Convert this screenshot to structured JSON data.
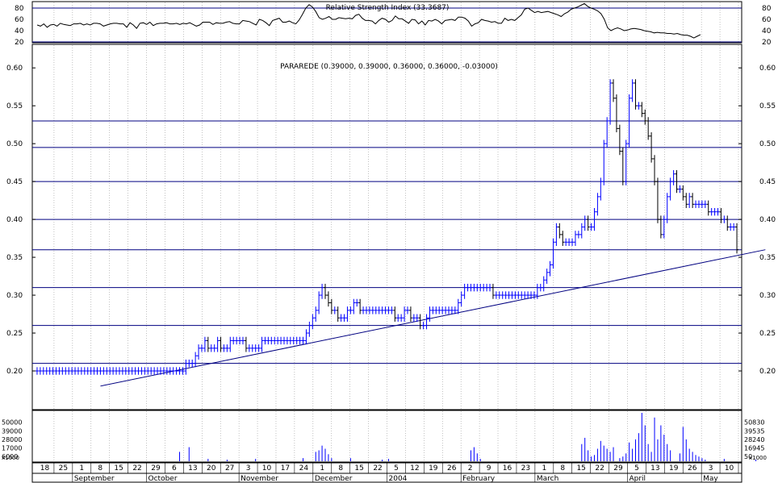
{
  "chart_data": [
    {
      "panel": "rsi",
      "type": "line",
      "title": "Relative Strength Index (33.3687)",
      "y_ticks": [
        80,
        60,
        40,
        20
      ],
      "ylim": [
        20,
        90
      ],
      "reference_lines": [
        80,
        20
      ],
      "values": [
        50,
        48,
        52,
        46,
        50,
        51,
        48,
        53,
        51,
        50,
        49,
        52,
        52,
        53,
        50,
        52,
        50,
        53,
        53,
        52,
        48,
        50,
        52,
        53,
        53,
        52,
        52,
        46,
        54,
        50,
        44,
        53,
        54,
        51,
        55,
        49,
        52,
        53,
        53,
        54,
        52,
        52,
        53,
        51,
        53,
        52,
        54,
        51,
        48,
        50,
        55,
        55,
        55,
        51,
        54,
        53,
        53,
        55,
        56,
        53,
        52,
        52,
        58,
        57,
        56,
        53,
        50,
        60,
        58,
        54,
        49,
        58,
        60,
        62,
        55,
        55,
        57,
        54,
        52,
        59,
        69,
        80,
        86,
        82,
        74,
        63,
        60,
        62,
        65,
        60,
        60,
        63,
        62,
        61,
        62,
        61,
        67,
        69,
        62,
        58,
        58,
        57,
        52,
        58,
        62,
        60,
        55,
        58,
        66,
        61,
        61,
        57,
        53,
        60,
        59,
        52,
        57,
        50,
        58,
        57,
        60,
        57,
        52,
        58,
        59,
        60,
        58,
        64,
        64,
        62,
        57,
        48,
        52,
        54,
        60,
        58,
        57,
        55,
        56,
        53,
        53,
        62,
        58,
        60,
        58,
        63,
        68,
        78,
        80,
        76,
        72,
        74,
        72,
        73,
        74,
        72,
        70,
        68,
        65,
        70,
        73,
        78,
        80,
        82,
        85,
        88,
        83,
        80,
        78,
        75,
        70,
        60,
        45,
        40,
        43,
        45,
        43,
        40,
        41,
        43,
        44,
        43,
        42,
        40,
        39,
        38,
        36,
        37,
        36,
        36,
        35,
        35,
        34,
        35,
        33,
        32,
        32,
        30,
        27,
        30,
        33
      ]
    },
    {
      "panel": "price",
      "type": "ohlc",
      "series_label": "PARAREDE (0.39000, 0.39000, 0.36000, 0.36000, -0.03000)",
      "y_ticks": [
        0.6,
        0.55,
        0.5,
        0.45,
        0.4,
        0.35,
        0.3,
        0.25,
        0.2
      ],
      "ylim": [
        0.15,
        0.63
      ],
      "horizontal_lines": [
        0.53,
        0.495,
        0.45,
        0.4,
        0.36,
        0.31,
        0.26,
        0.21
      ],
      "trendline": {
        "start": {
          "index": 20,
          "y": 0.18
        },
        "end": {
          "index": 230,
          "y": 0.36
        }
      },
      "closes": [
        0.2,
        0.2,
        0.2,
        0.2,
        0.2,
        0.2,
        0.2,
        0.2,
        0.2,
        0.2,
        0.2,
        0.2,
        0.2,
        0.2,
        0.2,
        0.2,
        0.2,
        0.2,
        0.2,
        0.2,
        0.2,
        0.2,
        0.2,
        0.2,
        0.2,
        0.2,
        0.2,
        0.2,
        0.2,
        0.2,
        0.2,
        0.2,
        0.2,
        0.2,
        0.2,
        0.2,
        0.2,
        0.2,
        0.2,
        0.2,
        0.2,
        0.2,
        0.2,
        0.2,
        0.2,
        0.2,
        0.2,
        0.21,
        0.21,
        0.21,
        0.22,
        0.23,
        0.23,
        0.24,
        0.23,
        0.23,
        0.23,
        0.24,
        0.23,
        0.23,
        0.23,
        0.24,
        0.24,
        0.24,
        0.24,
        0.24,
        0.23,
        0.23,
        0.23,
        0.23,
        0.23,
        0.24,
        0.24,
        0.24,
        0.24,
        0.24,
        0.24,
        0.24,
        0.24,
        0.24,
        0.24,
        0.24,
        0.24,
        0.24,
        0.24,
        0.25,
        0.26,
        0.27,
        0.28,
        0.3,
        0.31,
        0.3,
        0.29,
        0.28,
        0.28,
        0.27,
        0.27,
        0.27,
        0.28,
        0.28,
        0.29,
        0.29,
        0.28,
        0.28,
        0.28,
        0.28,
        0.28,
        0.28,
        0.28,
        0.28,
        0.28,
        0.28,
        0.28,
        0.27,
        0.27,
        0.27,
        0.28,
        0.28,
        0.27,
        0.27,
        0.27,
        0.26,
        0.26,
        0.27,
        0.28,
        0.28,
        0.28,
        0.28,
        0.28,
        0.28,
        0.28,
        0.28,
        0.28,
        0.29,
        0.3,
        0.31,
        0.31,
        0.31,
        0.31,
        0.31,
        0.31,
        0.31,
        0.31,
        0.31,
        0.3,
        0.3,
        0.3,
        0.3,
        0.3,
        0.3,
        0.3,
        0.3,
        0.3,
        0.3,
        0.3,
        0.3,
        0.3,
        0.3,
        0.31,
        0.31,
        0.32,
        0.33,
        0.34,
        0.37,
        0.39,
        0.38,
        0.37,
        0.37,
        0.37,
        0.37,
        0.38,
        0.38,
        0.39,
        0.4,
        0.39,
        0.39,
        0.41,
        0.43,
        0.45,
        0.5,
        0.53,
        0.58,
        0.56,
        0.52,
        0.49,
        0.45,
        0.5,
        0.56,
        0.58,
        0.55,
        0.55,
        0.54,
        0.53,
        0.51,
        0.48,
        0.45,
        0.4,
        0.38,
        0.4,
        0.43,
        0.45,
        0.46,
        0.44,
        0.44,
        0.43,
        0.42,
        0.43,
        0.42,
        0.42,
        0.42,
        0.42,
        0.42,
        0.41,
        0.41,
        0.41,
        0.41,
        0.4,
        0.4,
        0.39,
        0.39,
        0.39,
        0.36
      ]
    },
    {
      "panel": "volume",
      "type": "bar",
      "unit_label": "x1000",
      "y_ticks_left": [
        50000,
        39000,
        28000,
        17000,
        6000
      ],
      "y_ticks_right": [
        50830,
        39535,
        28240,
        16945,
        50
      ],
      "ylim": [
        0,
        62000
      ],
      "values": [
        0,
        0,
        0,
        0,
        0,
        0,
        0,
        0,
        0,
        0,
        0,
        0,
        0,
        0,
        0,
        0,
        0,
        0,
        0,
        0,
        0,
        0,
        0,
        0,
        0,
        0,
        0,
        0,
        0,
        0,
        0,
        0,
        0,
        0,
        0,
        0,
        0,
        0,
        0,
        0,
        0,
        0,
        0,
        0,
        0,
        12000,
        0,
        0,
        18000,
        0,
        0,
        0,
        0,
        0,
        3000,
        0,
        0,
        0,
        0,
        0,
        2000,
        0,
        0,
        0,
        0,
        0,
        0,
        0,
        0,
        3000,
        0,
        0,
        0,
        0,
        0,
        0,
        0,
        0,
        0,
        0,
        0,
        0,
        0,
        0,
        4000,
        0,
        0,
        0,
        12000,
        14000,
        20000,
        16000,
        9000,
        4000,
        0,
        0,
        0,
        0,
        0,
        4000,
        0,
        0,
        0,
        0,
        0,
        0,
        0,
        0,
        0,
        2000,
        0,
        3000,
        0,
        0,
        0,
        0,
        0,
        0,
        0,
        0,
        0,
        0,
        0,
        0,
        0,
        0,
        0,
        0,
        0,
        0,
        0,
        0,
        0,
        0,
        0,
        0,
        0,
        14000,
        18000,
        10000,
        3000,
        0,
        0,
        0,
        0,
        0,
        0,
        0,
        0,
        0,
        0,
        0,
        0,
        0,
        0,
        0,
        0,
        0,
        0,
        0,
        0,
        0,
        0,
        0,
        0,
        0,
        0,
        0,
        0,
        0,
        0,
        0,
        22000,
        30000,
        14000,
        6000,
        8000,
        16000,
        26000,
        20000,
        16000,
        12000,
        18000,
        0,
        4000,
        6000,
        10000,
        24000,
        16000,
        28000,
        36000,
        62000,
        46000,
        22000,
        12000,
        56000,
        28000,
        46000,
        34000,
        22000,
        14000,
        0,
        0,
        10000,
        44000,
        28000,
        16000,
        12000,
        8000,
        6000,
        4000,
        2000,
        0,
        0,
        0,
        0,
        0,
        3000,
        0,
        0,
        0,
        0,
        0,
        0,
        0,
        0,
        0,
        2000,
        0,
        0
      ]
    }
  ],
  "x_axis": {
    "day_labels": [
      "18",
      "25",
      "1",
      "8",
      "15",
      "22",
      "29",
      "6",
      "13",
      "20",
      "27",
      "3",
      "10",
      "17",
      "24",
      "1",
      "8",
      "15",
      "22",
      "5",
      "12",
      "19",
      "26",
      "2",
      "9",
      "16",
      "23",
      "1",
      "8",
      "15",
      "22",
      "29",
      "5",
      "13",
      "19",
      "26",
      "3",
      "10"
    ],
    "month_labels": [
      "September",
      "October",
      "November",
      "December",
      "2004",
      "February",
      "March",
      "April",
      "May"
    ]
  },
  "colors": {
    "reference_line": "#000080",
    "up_bar": "#0000ff",
    "down_bar": "#000000",
    "volume_bar": "#0000ff",
    "rsi_line": "#000000",
    "grid": "#999999"
  }
}
